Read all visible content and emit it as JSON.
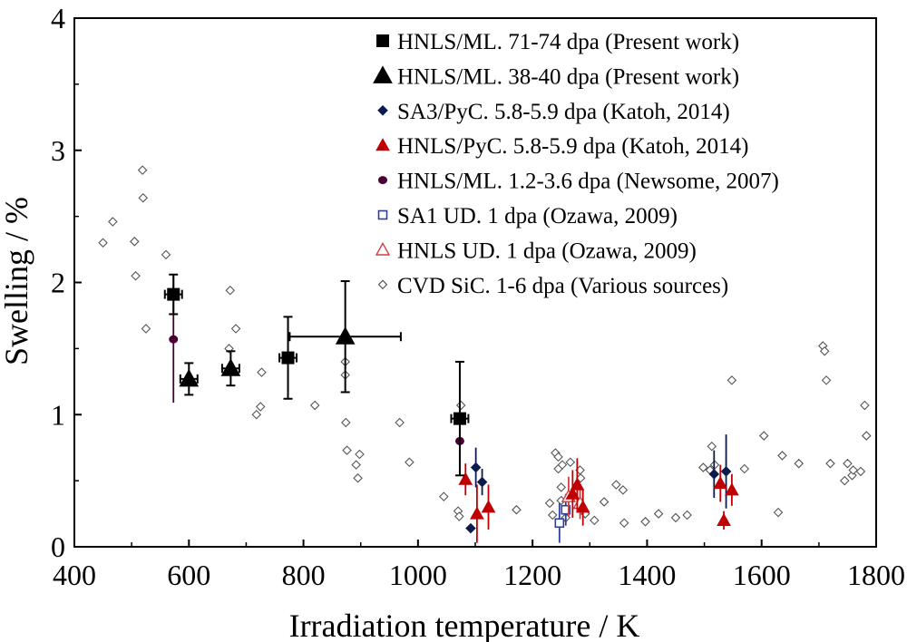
{
  "chart_data": {
    "type": "scatter",
    "xlabel": "Irradiation temperature / K",
    "ylabel": "Swelling / %",
    "xlim": [
      400,
      1800
    ],
    "ylim": [
      0,
      4
    ],
    "xticks": [
      "400",
      "600",
      "800",
      "1000",
      "1200",
      "1400",
      "1600",
      "1800"
    ],
    "yticks": [
      "0",
      "1",
      "2",
      "3",
      "4"
    ],
    "grid": false,
    "legend_position": "top-right",
    "series": [
      {
        "name": "HNLS/ML. 71-74 dpa (Present work)",
        "marker": "square-filled",
        "color": "#000000",
        "points": [
          {
            "x": 573,
            "y": 1.91,
            "xerr": 15,
            "yerr": 0.15
          },
          {
            "x": 773,
            "y": 1.43,
            "xerr": 15,
            "yerr": 0.31
          },
          {
            "x": 1073,
            "y": 0.97,
            "xerr": 15,
            "yerr": 0.43
          }
        ]
      },
      {
        "name": "HNLS/ML. 38-40 dpa (Present work)",
        "marker": "triangle-filled",
        "color": "#000000",
        "points": [
          {
            "x": 600,
            "y": 1.27,
            "xerr": 15,
            "yerr": 0.12
          },
          {
            "x": 673,
            "y": 1.35,
            "xerr": 15,
            "yerr": 0.13
          },
          {
            "x": 873,
            "y": 1.59,
            "xerr": 97,
            "yerr": 0.42
          }
        ]
      },
      {
        "name": "SA3/PyC. 5.8-5.9 dpa (Katoh, 2014)",
        "marker": "diamond-filled",
        "color": "#0d1a4d",
        "points": [
          {
            "x": 1092,
            "y": 0.14,
            "yerr": 0
          },
          {
            "x": 1101,
            "y": 0.6,
            "yerr": 0.15
          },
          {
            "x": 1112,
            "y": 0.49,
            "yerr": 0.1
          },
          {
            "x": 1517,
            "y": 0.55,
            "yerr": 0.18
          },
          {
            "x": 1538,
            "y": 0.57,
            "yerr": 0.28
          }
        ]
      },
      {
        "name": "HNLS/PyC. 5.8-5.9 dpa (Katoh, 2014)",
        "marker": "triangle-filled",
        "color": "#c00000",
        "points": [
          {
            "x": 1083,
            "y": 0.51,
            "yerr": 0.12
          },
          {
            "x": 1103,
            "y": 0.25,
            "yerr": 0.22
          },
          {
            "x": 1123,
            "y": 0.3,
            "yerr": 0.17
          },
          {
            "x": 1270,
            "y": 0.4,
            "yerr": 0.18
          },
          {
            "x": 1278,
            "y": 0.47,
            "yerr": 0.2
          },
          {
            "x": 1288,
            "y": 0.3,
            "yerr": 0.14
          },
          {
            "x": 1528,
            "y": 0.48,
            "yerr": 0.14
          },
          {
            "x": 1534,
            "y": 0.2,
            "yerr": 0.07
          },
          {
            "x": 1548,
            "y": 0.43,
            "yerr": 0.12
          }
        ]
      },
      {
        "name": "HNLS/ML. 1.2-3.6 dpa (Newsome, 2007)",
        "marker": "circle-filled",
        "color": "#4a0033",
        "points": [
          {
            "x": 573,
            "y": 1.57,
            "yerr": 0.48
          },
          {
            "x": 1073,
            "y": 0.8,
            "yerr": 0.25
          }
        ]
      },
      {
        "name": "SA1 UD. 1 dpa (Ozawa, 2009)",
        "marker": "square-open",
        "color": "#2b3f9f",
        "points": [
          {
            "x": 1247,
            "y": 0.18,
            "yerr": 0.15
          },
          {
            "x": 1258,
            "y": 0.28,
            "yerr": 0.12
          }
        ]
      },
      {
        "name": "HNLS UD. 1 dpa (Ozawa, 2009)",
        "marker": "triangle-open",
        "color": "#d04040",
        "points": [
          {
            "x": 1263,
            "y": 0.38,
            "yerr": 0.15
          },
          {
            "x": 1283,
            "y": 0.33,
            "yerr": 0.12
          }
        ]
      },
      {
        "name": "CVD SiC. 1-6 dpa (Various sources)",
        "marker": "diamond-open",
        "color": "#555555",
        "points": [
          {
            "x": 450,
            "y": 2.3
          },
          {
            "x": 467,
            "y": 2.46
          },
          {
            "x": 505,
            "y": 2.31
          },
          {
            "x": 507,
            "y": 2.05
          },
          {
            "x": 519,
            "y": 2.85
          },
          {
            "x": 520,
            "y": 2.64
          },
          {
            "x": 525,
            "y": 1.65
          },
          {
            "x": 560,
            "y": 2.21
          },
          {
            "x": 672,
            "y": 1.94
          },
          {
            "x": 670,
            "y": 1.5
          },
          {
            "x": 682,
            "y": 1.65
          },
          {
            "x": 718,
            "y": 1.0
          },
          {
            "x": 725,
            "y": 1.06
          },
          {
            "x": 727,
            "y": 1.32
          },
          {
            "x": 820,
            "y": 1.07
          },
          {
            "x": 873,
            "y": 1.4
          },
          {
            "x": 873,
            "y": 1.3
          },
          {
            "x": 874,
            "y": 0.94
          },
          {
            "x": 876,
            "y": 0.73
          },
          {
            "x": 892,
            "y": 0.62
          },
          {
            "x": 895,
            "y": 0.52
          },
          {
            "x": 898,
            "y": 0.7
          },
          {
            "x": 968,
            "y": 0.94
          },
          {
            "x": 985,
            "y": 0.64
          },
          {
            "x": 1045,
            "y": 0.38
          },
          {
            "x": 1070,
            "y": 0.27
          },
          {
            "x": 1072,
            "y": 0.23
          },
          {
            "x": 1075,
            "y": 1.07
          },
          {
            "x": 1172,
            "y": 0.28
          },
          {
            "x": 1230,
            "y": 0.33
          },
          {
            "x": 1235,
            "y": 0.24
          },
          {
            "x": 1240,
            "y": 0.71
          },
          {
            "x": 1245,
            "y": 0.68
          },
          {
            "x": 1245,
            "y": 0.59
          },
          {
            "x": 1250,
            "y": 0.45
          },
          {
            "x": 1252,
            "y": 0.62
          },
          {
            "x": 1250,
            "y": 0.35
          },
          {
            "x": 1258,
            "y": 0.22
          },
          {
            "x": 1266,
            "y": 0.64
          },
          {
            "x": 1283,
            "y": 0.58
          },
          {
            "x": 1284,
            "y": 0.52
          },
          {
            "x": 1292,
            "y": 0.25
          },
          {
            "x": 1308,
            "y": 0.2
          },
          {
            "x": 1325,
            "y": 0.34
          },
          {
            "x": 1346,
            "y": 0.47
          },
          {
            "x": 1358,
            "y": 0.43
          },
          {
            "x": 1360,
            "y": 0.18
          },
          {
            "x": 1397,
            "y": 0.19
          },
          {
            "x": 1420,
            "y": 0.25
          },
          {
            "x": 1450,
            "y": 0.22
          },
          {
            "x": 1470,
            "y": 0.24
          },
          {
            "x": 1498,
            "y": 0.6
          },
          {
            "x": 1510,
            "y": 0.58
          },
          {
            "x": 1513,
            "y": 0.76
          },
          {
            "x": 1518,
            "y": 0.62
          },
          {
            "x": 1548,
            "y": 1.26
          },
          {
            "x": 1570,
            "y": 0.59
          },
          {
            "x": 1604,
            "y": 0.84
          },
          {
            "x": 1629,
            "y": 0.26
          },
          {
            "x": 1636,
            "y": 0.69
          },
          {
            "x": 1665,
            "y": 0.63
          },
          {
            "x": 1707,
            "y": 1.52
          },
          {
            "x": 1710,
            "y": 1.48
          },
          {
            "x": 1713,
            "y": 1.26
          },
          {
            "x": 1720,
            "y": 0.63
          },
          {
            "x": 1745,
            "y": 0.5
          },
          {
            "x": 1750,
            "y": 0.63
          },
          {
            "x": 1758,
            "y": 0.54
          },
          {
            "x": 1760,
            "y": 0.58
          },
          {
            "x": 1773,
            "y": 0.57
          },
          {
            "x": 1780,
            "y": 1.07
          },
          {
            "x": 1783,
            "y": 0.84
          }
        ]
      }
    ]
  }
}
